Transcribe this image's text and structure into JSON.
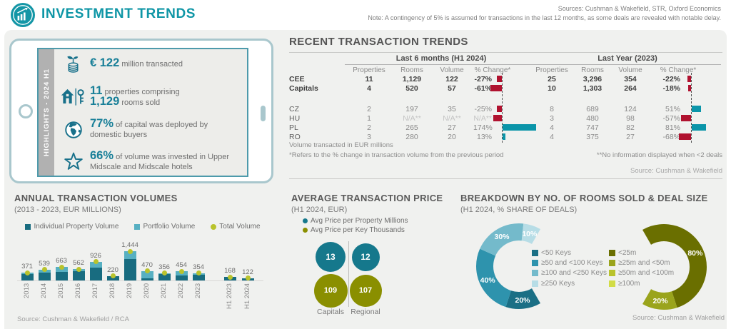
{
  "colors": {
    "accent": "#0f96a6",
    "negative": "#b0122f",
    "positive": "#0b95a9"
  },
  "header": {
    "title": "INVESTMENT TRENDS",
    "sources": "Sources: Cushman & Wakefield, STR, Oxford Economics",
    "note": "Note: A contingency of 5% is assumed for transactions in the last 12 months, as some deals are revealed with notable delay."
  },
  "highlights": {
    "ribbon": "HIGHLIGHTS - 2024 H1",
    "items": [
      {
        "icon": "coins-sprout-icon",
        "value": "€ 122",
        "text": "million transacted"
      },
      {
        "icon": "house-key-icon",
        "value": "11",
        "text": "properties comprising",
        "value2": "1,129",
        "text2": "rooms sold"
      },
      {
        "icon": "globe-icon",
        "value": "77%",
        "text": "of capital was deployed by domestic buyers"
      },
      {
        "icon": "star-icon",
        "value": "66%",
        "text": "of volume was invested in Upper Midscale and Midscale hotels"
      }
    ]
  },
  "transactions": {
    "title": "RECENT TRANSACTION TRENDS",
    "groups": [
      "Last 6 months (H1 2024)",
      "Last Year (2023)"
    ],
    "columns": [
      "Properties",
      "Rooms",
      "Volume",
      "% Change*"
    ],
    "rows": [
      {
        "label": "CEE",
        "bold": true,
        "h1": [
          "11",
          "1,129",
          "122",
          "-27%"
        ],
        "h1_pct": -27,
        "yr": [
          "25",
          "3,296",
          "354",
          "-22%"
        ],
        "yr_pct": -22
      },
      {
        "label": "Capitals",
        "bold": true,
        "gap_after": true,
        "h1": [
          "4",
          "520",
          "57",
          "-61%"
        ],
        "h1_pct": -61,
        "yr": [
          "10",
          "1,303",
          "264",
          "-18%"
        ],
        "yr_pct": -18
      },
      {
        "label": "CZ",
        "h1": [
          "2",
          "197",
          "35",
          "-25%"
        ],
        "h1_pct": -25,
        "yr": [
          "8",
          "689",
          "124",
          "51%"
        ],
        "yr_pct": 51
      },
      {
        "label": "HU",
        "h1": [
          "1",
          "N/A**",
          "N/A**",
          "N/A**"
        ],
        "h1_pct": -45,
        "h1_na": true,
        "yr": [
          "3",
          "480",
          "98",
          "-57%"
        ],
        "yr_pct": -57
      },
      {
        "label": "PL",
        "h1": [
          "2",
          "265",
          "27",
          "174%"
        ],
        "h1_pct": 174,
        "yr": [
          "4",
          "747",
          "82",
          "81%"
        ],
        "yr_pct": 81
      },
      {
        "label": "RO",
        "h1": [
          "3",
          "280",
          "20",
          "13%"
        ],
        "h1_pct": 13,
        "yr": [
          "4",
          "375",
          "27",
          "-68%"
        ],
        "yr_pct": -68
      }
    ],
    "footnote_volume": "Volume transacted in EUR millions",
    "footnote_change": "*Refers to the % change in transaction volume from the previous period",
    "footnote_na": "**No information displayed when <2 deals",
    "source": "Source: Cushman & Wakefield"
  },
  "chart_data": [
    {
      "type": "bar",
      "stacked": true,
      "title": "ANNUAL TRANSACTION VOLUMES",
      "subtitle": "(2013 - 2023, EUR MILLIONS)",
      "categories": [
        "2013",
        "2014",
        "2015",
        "2016",
        "2017",
        "2018",
        "2019",
        "2020",
        "2021",
        "2022",
        "2023",
        "H1 2023",
        "H1 2024"
      ],
      "series": [
        {
          "name": "Individual Property Volume",
          "color": "#186c80",
          "values": [
            310,
            400,
            420,
            460,
            620,
            200,
            1050,
            120,
            300,
            260,
            290,
            160,
            112
          ]
        },
        {
          "name": "Portfolio Volume",
          "color": "#57b0c2",
          "values": [
            61,
            139,
            243,
            102,
            306,
            20,
            394,
            350,
            56,
            194,
            64,
            8,
            10
          ]
        }
      ],
      "totals": {
        "name": "Total Volume",
        "color": "#b9c32c",
        "values": [
          371,
          539,
          663,
          562,
          926,
          220,
          1444,
          470,
          356,
          454,
          354,
          168,
          122
        ],
        "labels": [
          "371",
          "539",
          "663",
          "562",
          "926",
          "220",
          "1,444",
          "470",
          "356",
          "454",
          "354",
          "168",
          "122"
        ]
      },
      "ylim": [
        0,
        1444
      ],
      "source": "Source: Cushman & Wakefield / RCA"
    },
    {
      "type": "bubble",
      "title": "AVERAGE TRANSACTION PRICE",
      "subtitle": "(H1 2024, EUR)",
      "legend": [
        {
          "label": "Avg Price per Property Millions",
          "color": "#15788c"
        },
        {
          "label": "Avg Price per Key Thousands",
          "color": "#8a8f00"
        }
      ],
      "groups": [
        {
          "label": "Capitals",
          "property_millions": 13,
          "key_thousands": 109
        },
        {
          "label": "Regional",
          "property_millions": 12,
          "key_thousands": 107
        }
      ]
    },
    {
      "type": "donut",
      "title": "BREAKDOWN BY NO. OF ROOMS SOLD & DEAL SIZE",
      "subtitle": "(H1 2024, % SHARE OF DEALS)",
      "donuts": [
        {
          "name": "rooms-sold",
          "segments": [
            {
              "label": "<50 Keys",
              "value": 20,
              "color": "#1b6f85"
            },
            {
              "label": "≥50 and <100 Keys",
              "value": 40,
              "color": "#2e93ad"
            },
            {
              "label": "≥100 and <250 Keys",
              "value": 30,
              "color": "#74bacb"
            },
            {
              "label": "≥250 Keys",
              "value": 10,
              "color": "#b7dde6"
            }
          ]
        },
        {
          "name": "deal-size",
          "segments": [
            {
              "label": "<25m",
              "value": 80,
              "color": "#6a6f00"
            },
            {
              "label": "≥25m and <50m",
              "value": 20,
              "color": "#9aa41c"
            },
            {
              "label": "≥50m and <100m",
              "value": 0,
              "color": "#b9c32c"
            },
            {
              "label": "≥100m",
              "value": 0,
              "color": "#d2dc46"
            }
          ]
        }
      ],
      "source": "Source: Cushman & Wakefield"
    }
  ]
}
